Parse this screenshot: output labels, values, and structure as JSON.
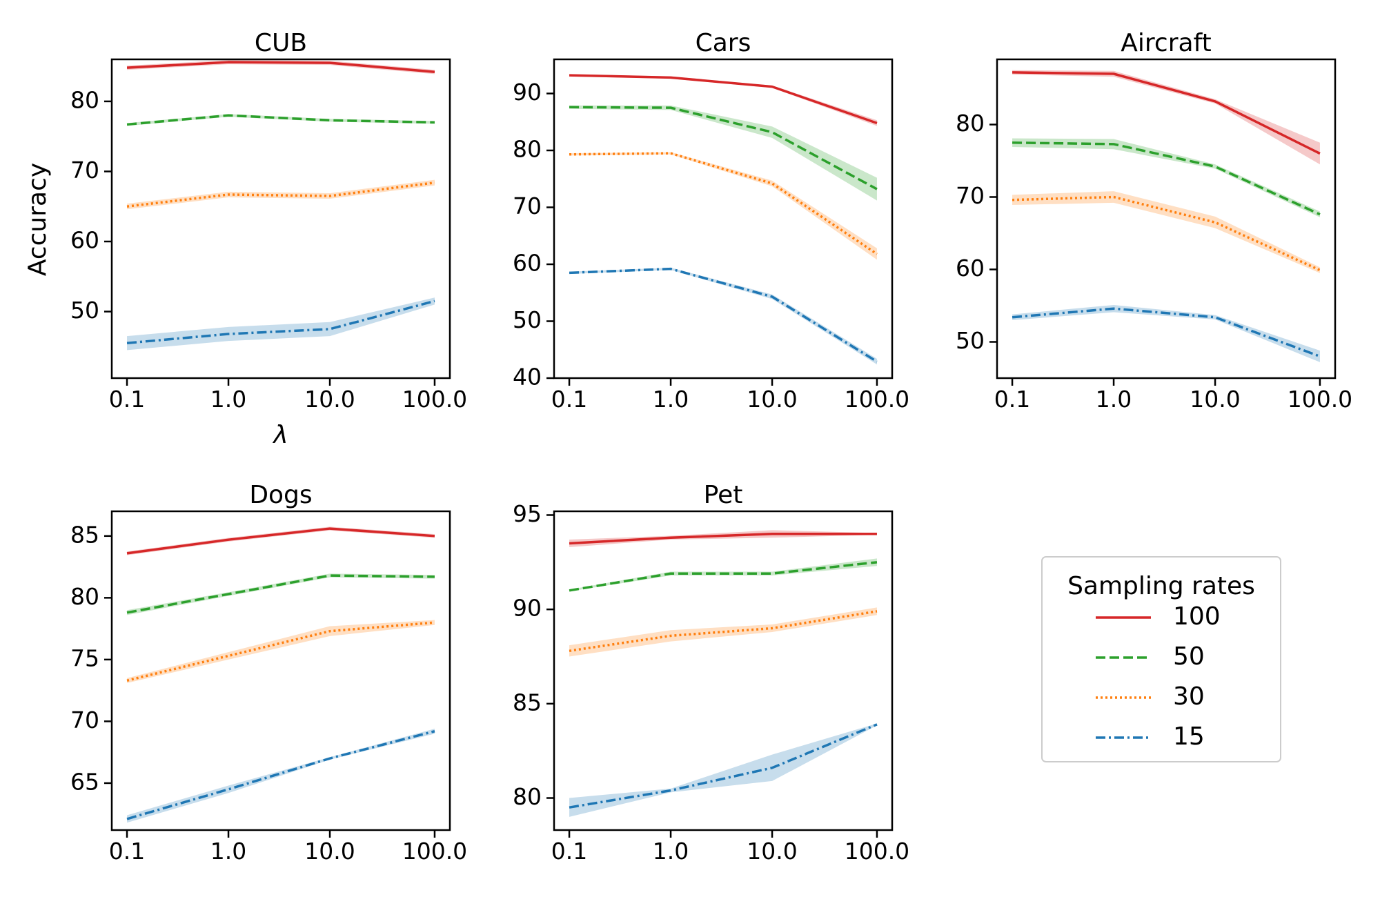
{
  "legend": {
    "title": "Sampling rates",
    "entries": [
      {
        "label": "100",
        "color": "#d62728",
        "dash": "solid"
      },
      {
        "label": "50",
        "color": "#2ca02c",
        "dash": "dashed"
      },
      {
        "label": "30",
        "color": "#ff7f0e",
        "dash": "dotted"
      },
      {
        "label": "15",
        "color": "#1f77b4",
        "dash": "dashdot"
      }
    ]
  },
  "chart_data": [
    {
      "type": "line",
      "title": "CUB",
      "xlabel": "λ",
      "ylabel": "Accuracy",
      "categories": [
        "0.1",
        "1.0",
        "10.0",
        "100.0"
      ],
      "ylim": [
        40.5,
        86
      ],
      "yticks": [
        50,
        60,
        70,
        80
      ],
      "series": [
        {
          "name": "100",
          "values": [
            84.8,
            85.6,
            85.5,
            84.2
          ],
          "band": [
            0.3,
            0.3,
            0.3,
            0.3
          ]
        },
        {
          "name": "50",
          "values": [
            76.7,
            78.0,
            77.3,
            77.0
          ],
          "band": [
            0.2,
            0.2,
            0.2,
            0.2
          ]
        },
        {
          "name": "30",
          "values": [
            65.0,
            66.7,
            66.5,
            68.4
          ],
          "band": [
            0.4,
            0.4,
            0.4,
            0.4
          ]
        },
        {
          "name": "15",
          "values": [
            45.5,
            46.8,
            47.5,
            51.5
          ],
          "band": [
            1.0,
            1.0,
            1.0,
            0.5
          ]
        }
      ]
    },
    {
      "type": "line",
      "title": "Cars",
      "xlabel": "",
      "ylabel": "",
      "categories": [
        "0.1",
        "1.0",
        "10.0",
        "100.0"
      ],
      "ylim": [
        40,
        96
      ],
      "yticks": [
        40,
        50,
        60,
        70,
        80,
        90
      ],
      "series": [
        {
          "name": "100",
          "values": [
            93.2,
            92.8,
            91.2,
            84.8
          ],
          "band": [
            0.2,
            0.2,
            0.2,
            0.5
          ]
        },
        {
          "name": "50",
          "values": [
            87.6,
            87.5,
            83.2,
            73.2
          ],
          "band": [
            0.3,
            0.4,
            1.0,
            2.0
          ]
        },
        {
          "name": "30",
          "values": [
            79.3,
            79.5,
            74.2,
            61.8
          ],
          "band": [
            0.2,
            0.2,
            0.5,
            1.0
          ]
        },
        {
          "name": "15",
          "values": [
            58.5,
            59.2,
            54.3,
            42.9
          ],
          "band": [
            0.2,
            0.2,
            0.4,
            0.5
          ]
        }
      ]
    },
    {
      "type": "line",
      "title": "Aircraft",
      "xlabel": "",
      "ylabel": "",
      "categories": [
        "0.1",
        "1.0",
        "10.0",
        "100.0"
      ],
      "ylim": [
        45,
        89
      ],
      "yticks": [
        50,
        60,
        70,
        80
      ],
      "series": [
        {
          "name": "100",
          "values": [
            87.2,
            87.0,
            83.2,
            76.0
          ],
          "band": [
            0.3,
            0.4,
            0.3,
            1.5
          ]
        },
        {
          "name": "50",
          "values": [
            77.5,
            77.3,
            74.2,
            67.6
          ],
          "band": [
            0.6,
            0.7,
            0.3,
            0.4
          ]
        },
        {
          "name": "30",
          "values": [
            69.6,
            70.0,
            66.5,
            59.9
          ],
          "band": [
            0.7,
            0.8,
            0.8,
            0.4
          ]
        },
        {
          "name": "15",
          "values": [
            53.4,
            54.6,
            53.4,
            48.0
          ],
          "band": [
            0.4,
            0.5,
            0.3,
            0.8
          ]
        }
      ]
    },
    {
      "type": "line",
      "title": "Dogs",
      "xlabel": "",
      "ylabel": "",
      "categories": [
        "0.1",
        "1.0",
        "10.0",
        "100.0"
      ],
      "ylim": [
        61.2,
        87
      ],
      "yticks": [
        65,
        70,
        75,
        80,
        85
      ],
      "series": [
        {
          "name": "100",
          "values": [
            83.6,
            84.7,
            85.6,
            85.0
          ],
          "band": [
            0.15,
            0.15,
            0.15,
            0.15
          ]
        },
        {
          "name": "50",
          "values": [
            78.8,
            80.3,
            81.8,
            81.7
          ],
          "band": [
            0.2,
            0.15,
            0.15,
            0.15
          ]
        },
        {
          "name": "30",
          "values": [
            73.3,
            75.3,
            77.3,
            78.0
          ],
          "band": [
            0.2,
            0.3,
            0.4,
            0.2
          ]
        },
        {
          "name": "15",
          "values": [
            62.1,
            64.5,
            67.0,
            69.2
          ],
          "band": [
            0.3,
            0.3,
            0.1,
            0.2
          ]
        }
      ]
    },
    {
      "type": "line",
      "title": "Pet",
      "xlabel": "",
      "ylabel": "",
      "categories": [
        "0.1",
        "1.0",
        "10.0",
        "100.0"
      ],
      "ylim": [
        78.3,
        95.2
      ],
      "yticks": [
        80,
        85,
        90,
        95
      ],
      "series": [
        {
          "name": "100",
          "values": [
            93.5,
            93.8,
            94.0,
            94.0
          ],
          "band": [
            0.2,
            0.1,
            0.2,
            0.05
          ]
        },
        {
          "name": "50",
          "values": [
            91.0,
            91.9,
            91.9,
            92.5
          ],
          "band": [
            0.05,
            0.1,
            0.1,
            0.2
          ]
        },
        {
          "name": "30",
          "values": [
            87.8,
            88.6,
            89.0,
            89.9
          ],
          "band": [
            0.3,
            0.3,
            0.2,
            0.2
          ]
        },
        {
          "name": "15",
          "values": [
            79.5,
            80.4,
            81.6,
            83.9
          ],
          "band": [
            0.5,
            0.1,
            0.7,
            0.05
          ]
        }
      ]
    }
  ]
}
